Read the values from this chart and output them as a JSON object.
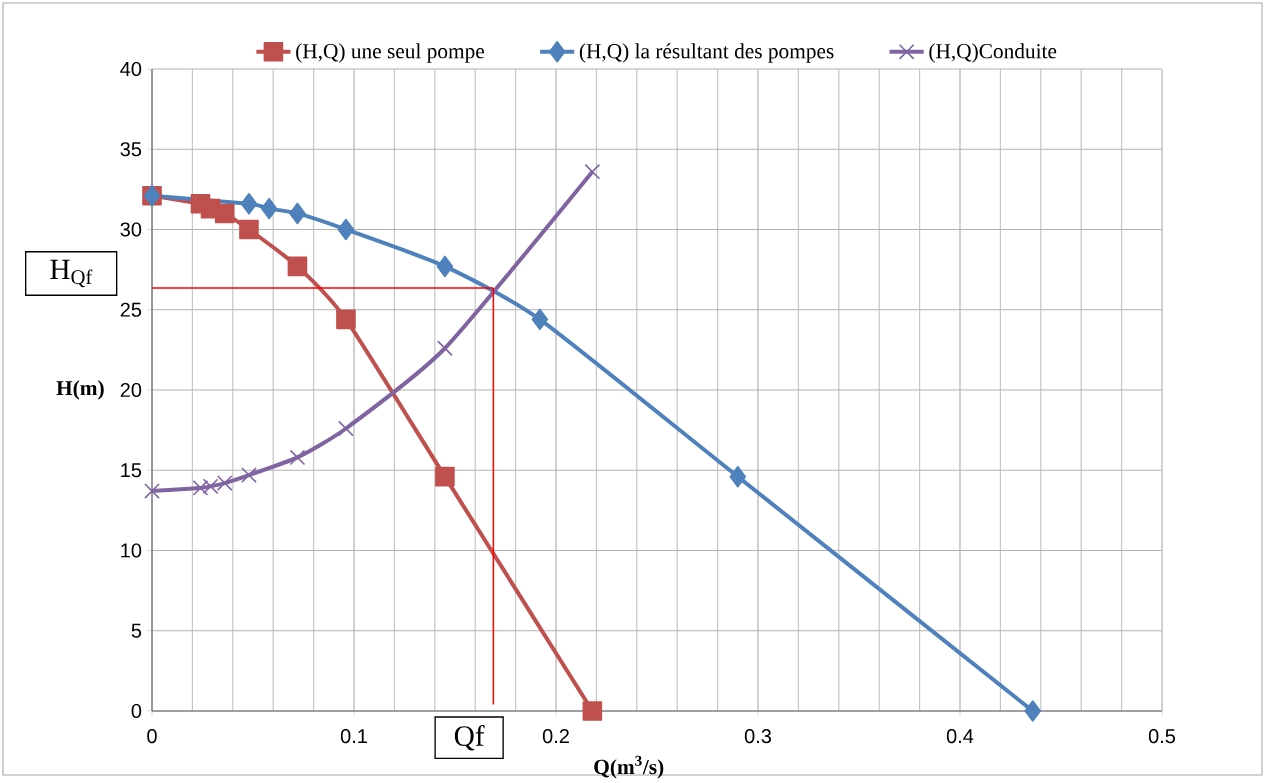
{
  "chart_data": {
    "type": "line",
    "xlabel": "Q(m$^{3}$/s)",
    "ylabel": "H(m)",
    "xlim": [
      0,
      0.5
    ],
    "ylim": [
      0,
      40
    ],
    "xticks": [
      0,
      0.1,
      0.2,
      0.3,
      0.4,
      0.5
    ],
    "yticks": [
      0,
      5,
      10,
      15,
      20,
      25,
      30,
      35,
      40
    ],
    "grid": true,
    "legend": "top",
    "line_style": "solid",
    "series": [
      {
        "name": "(H,Q) une seul pompe",
        "color": "#c0504d",
        "marker": "square",
        "x": [
          0,
          0.024,
          0.029,
          0.036,
          0.048,
          0.072,
          0.096,
          0.145,
          0.218
        ],
        "values": [
          32.1,
          31.6,
          31.3,
          31.0,
          30.0,
          27.7,
          24.4,
          14.6,
          0
        ]
      },
      {
        "name": "(H,Q) la  résultant des pompes",
        "color": "#4f81bd",
        "marker": "diamond",
        "x": [
          0,
          0.048,
          0.058,
          0.072,
          0.096,
          0.145,
          0.192,
          0.29,
          0.436
        ],
        "values": [
          32.1,
          31.6,
          31.3,
          31.0,
          30.0,
          27.7,
          24.4,
          14.6,
          0
        ]
      },
      {
        "name": "(H,Q)Conduite",
        "color": "#8064a2",
        "marker": "cross",
        "x": [
          0,
          0.024,
          0.029,
          0.036,
          0.048,
          0.072,
          0.096,
          0.145,
          0.218
        ],
        "values": [
          13.7,
          13.9,
          14.0,
          14.2,
          14.7,
          15.8,
          17.6,
          22.6,
          33.6
        ]
      },
      {
        "color": "#ff0000",
        "marker": "none",
        "x": [
          0,
          0.169
        ],
        "values": [
          26.35,
          26.35
        ]
      },
      {
        "color": "#ff0000",
        "marker": "none",
        "x": [
          0.169,
          0.169
        ],
        "values": [
          26.35,
          0.4
        ]
      }
    ],
    "annotations": [
      "H$_{Qf}$",
      "Qf"
    ]
  }
}
